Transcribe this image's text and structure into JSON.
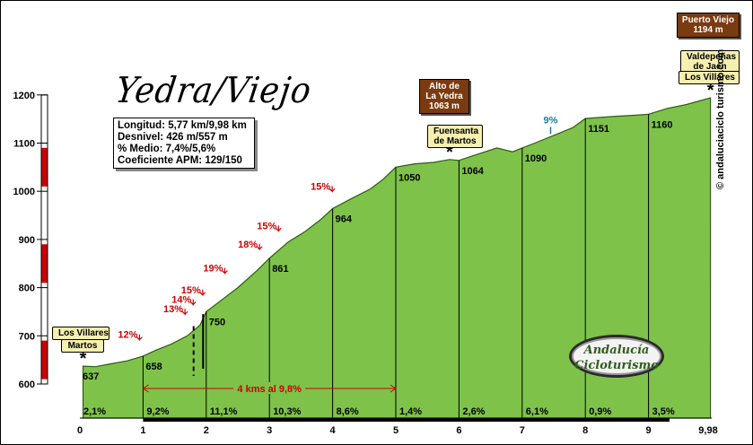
{
  "title": "Yedra/Viejo",
  "info": [
    "Longitud: 5,77 km/9,98 km",
    "Desnivel: 426 m/557 m",
    "% Medio: 7,4%/5,6%",
    "Coeficiente APM: 129/150"
  ],
  "signs": {
    "puerto_viejo": [
      "Puerto Viejo",
      "1194 m"
    ],
    "alto_yedra": [
      "Alto de",
      "La Yedra",
      "1063 m"
    ],
    "fuensanta": [
      "Fuensanta",
      "de Martos"
    ],
    "valdepenas": [
      "Valdepeñas",
      "de Jaén"
    ],
    "los_villares_top": "Los Villares",
    "los_villares_left": "Los Villares",
    "martos_left": "Martos"
  },
  "website": "© andaluciaciclo turismo.com",
  "logo": [
    "Andalucía",
    "Cicloturismo"
  ],
  "km_note": "4 kms al 9,8%",
  "colors": {
    "fill": "#7ec24a",
    "stroke": "#2e5a12",
    "red": "#cc0000",
    "sign_brown": "#7a3b10"
  },
  "chart_data": {
    "type": "area",
    "xlim": [
      0,
      10
    ],
    "ylim": [
      600,
      1200
    ],
    "x_ticks": [
      0,
      1,
      2,
      3,
      4,
      5,
      6,
      7,
      8,
      9
    ],
    "x_tick_labels": [
      "0",
      "1",
      "2",
      "3",
      "4",
      "5",
      "6",
      "7",
      "8",
      "9"
    ],
    "x_end_label": "9,98",
    "y_ticks": [
      600,
      700,
      800,
      900,
      1000,
      1100,
      1200
    ],
    "profile": [
      [
        0.05,
        637
      ],
      [
        0.25,
        636
      ],
      [
        0.5,
        642
      ],
      [
        0.75,
        648
      ],
      [
        1.0,
        658
      ],
      [
        1.2,
        670
      ],
      [
        1.45,
        683
      ],
      [
        1.7,
        700
      ],
      [
        1.9,
        722
      ],
      [
        2.0,
        750
      ],
      [
        2.2,
        770
      ],
      [
        2.5,
        800
      ],
      [
        2.8,
        835
      ],
      [
        3.0,
        861
      ],
      [
        3.3,
        895
      ],
      [
        3.55,
        915
      ],
      [
        3.8,
        940
      ],
      [
        4.0,
        964
      ],
      [
        4.3,
        985
      ],
      [
        4.6,
        1005
      ],
      [
        4.8,
        1025
      ],
      [
        5.0,
        1050
      ],
      [
        5.3,
        1057
      ],
      [
        5.6,
        1060
      ],
      [
        5.85,
        1066
      ],
      [
        6.0,
        1064
      ],
      [
        6.25,
        1075
      ],
      [
        6.6,
        1090
      ],
      [
        6.85,
        1082
      ],
      [
        7.0,
        1090
      ],
      [
        7.2,
        1100
      ],
      [
        7.5,
        1116
      ],
      [
        7.8,
        1132
      ],
      [
        8.0,
        1151
      ],
      [
        8.4,
        1155
      ],
      [
        8.8,
        1158
      ],
      [
        9.0,
        1160
      ],
      [
        9.3,
        1172
      ],
      [
        9.6,
        1180
      ],
      [
        9.98,
        1194
      ]
    ],
    "point_labels": [
      {
        "x": 0,
        "y": 637,
        "text": "637"
      },
      {
        "x": 1,
        "y": 658,
        "text": "658"
      },
      {
        "x": 2,
        "y": 750,
        "text": "750"
      },
      {
        "x": 3,
        "y": 861,
        "text": "861"
      },
      {
        "x": 4,
        "y": 964,
        "text": "964"
      },
      {
        "x": 5,
        "y": 1050,
        "text": "1050"
      },
      {
        "x": 6,
        "y": 1064,
        "text": "1064"
      },
      {
        "x": 7,
        "y": 1090,
        "text": "1090"
      },
      {
        "x": 8,
        "y": 1151,
        "text": "1151"
      },
      {
        "x": 9,
        "y": 1160,
        "text": "1160"
      }
    ],
    "segment_gradients": [
      "2,1%",
      "9,2%",
      "11,1%",
      "10,3%",
      "8,6%",
      "1,4%",
      "2,6%",
      "6,1%",
      "0,9%",
      "3,5%"
    ],
    "steep_markers": [
      {
        "x": 1.0,
        "y": 662,
        "text": "12%"
      },
      {
        "x": 1.72,
        "y": 715,
        "text": "13%"
      },
      {
        "x": 1.85,
        "y": 735,
        "text": "14%"
      },
      {
        "x": 2.0,
        "y": 755,
        "text": "15%"
      },
      {
        "x": 2.35,
        "y": 800,
        "text": "19%"
      },
      {
        "x": 2.9,
        "y": 850,
        "text": "18%"
      },
      {
        "x": 3.2,
        "y": 888,
        "text": "15%"
      },
      {
        "x": 4.05,
        "y": 970,
        "text": "15%"
      }
    ],
    "teal_marker": {
      "x": 7.45,
      "y": 1115,
      "text": "9%"
    }
  }
}
